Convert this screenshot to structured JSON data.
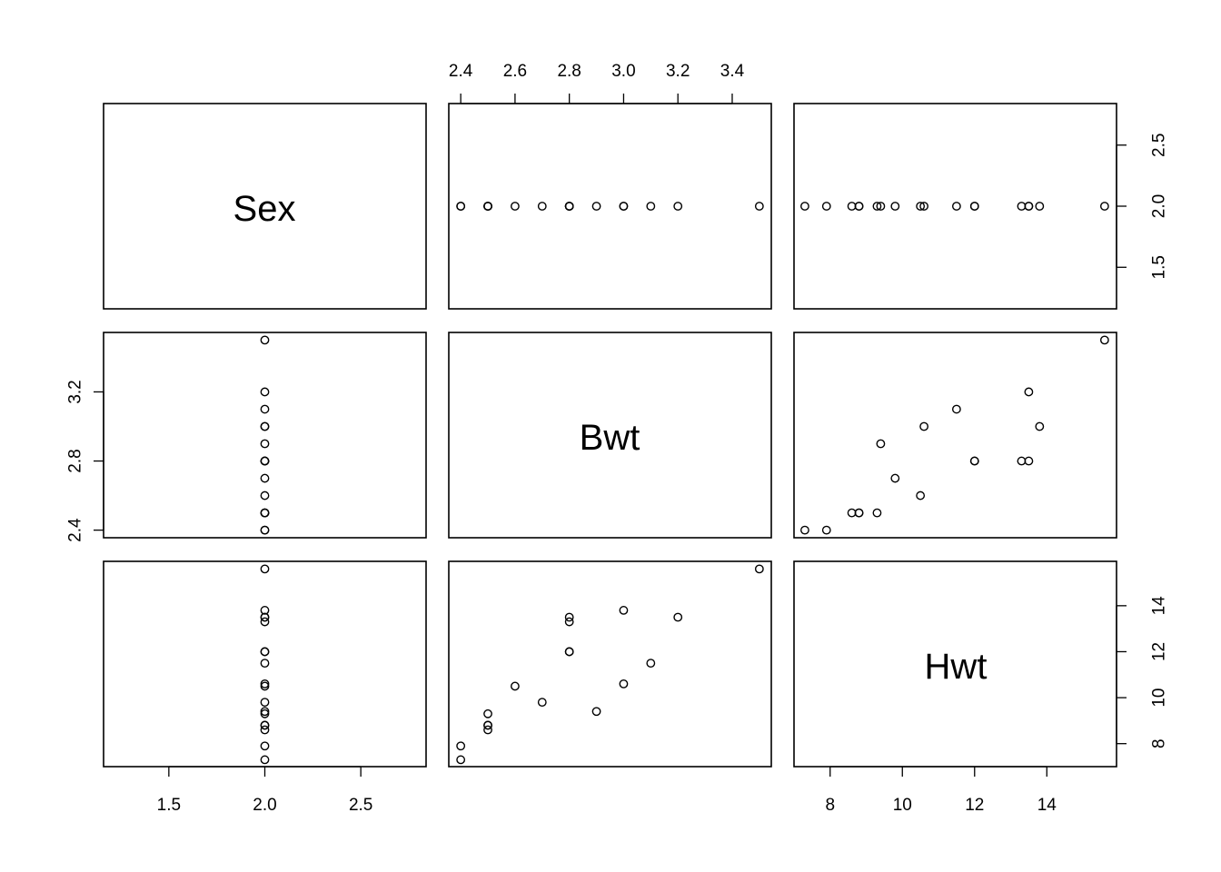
{
  "chart_data": {
    "type": "scatter",
    "kind": "pairs-scatterplot-matrix",
    "variables": [
      "Sex",
      "Bwt",
      "Hwt"
    ],
    "ranges": {
      "Sex": [
        1.16,
        2.84
      ],
      "Bwt": [
        2.356,
        3.544
      ],
      "Hwt": [
        7.0,
        15.93
      ]
    },
    "ticks": {
      "Sex": {
        "values": [
          1.5,
          2.0,
          2.5
        ],
        "labels": [
          "1.5",
          "2.0",
          "2.5"
        ]
      },
      "Bwt_top": {
        "values": [
          2.4,
          2.6,
          2.8,
          3.0,
          3.2,
          3.4
        ],
        "labels": [
          "2.4",
          "2.6",
          "2.8",
          "3.0",
          "3.2",
          "3.4"
        ]
      },
      "Bwt_left": {
        "values": [
          2.4,
          2.8,
          3.2
        ],
        "labels": [
          "2.4",
          "2.8",
          "3.2"
        ]
      },
      "Sex_right": {
        "values": [
          1.5,
          2.0,
          2.5
        ],
        "labels": [
          "1.5",
          "2.0",
          "2.5"
        ]
      },
      "Hwt_bottom": {
        "values": [
          8,
          10,
          12,
          14
        ],
        "labels": [
          "8",
          "10",
          "12",
          "14"
        ]
      },
      "Hwt_right": {
        "values": [
          8,
          10,
          12,
          14
        ],
        "labels": [
          "8",
          "10",
          "12",
          "14"
        ]
      }
    },
    "points": {
      "Sex": [
        2,
        2,
        2,
        2,
        2,
        2,
        2,
        2,
        2,
        2,
        2,
        2,
        2,
        2,
        2,
        2,
        2,
        2
      ],
      "Bwt": [
        2.4,
        2.4,
        2.5,
        2.5,
        2.5,
        2.6,
        2.7,
        2.8,
        2.8,
        2.8,
        2.9,
        3.0,
        3.0,
        3.1,
        3.2,
        3.5,
        2.8,
        2.5
      ],
      "Hwt": [
        7.3,
        7.9,
        8.6,
        8.8,
        9.3,
        10.5,
        9.8,
        12.0,
        13.3,
        13.5,
        9.4,
        10.6,
        13.8,
        11.5,
        13.5,
        15.6,
        12.0,
        8.8
      ]
    }
  }
}
